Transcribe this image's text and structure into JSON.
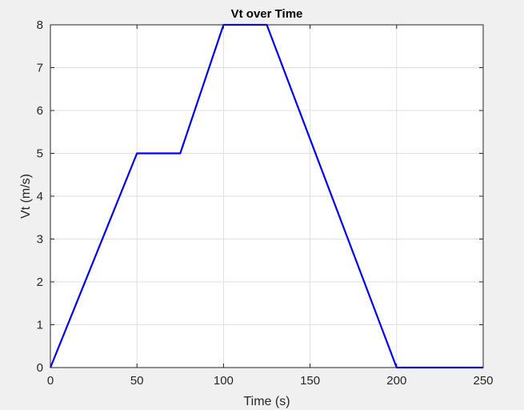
{
  "chart_data": {
    "type": "line",
    "title": "Vt over Time",
    "xlabel": "Time (s)",
    "ylabel": "Vt (m/s)",
    "xlim": [
      0,
      250
    ],
    "ylim": [
      0,
      8
    ],
    "xticks": [
      0,
      50,
      100,
      150,
      200,
      250
    ],
    "yticks": [
      0,
      1,
      2,
      3,
      4,
      5,
      6,
      7,
      8
    ],
    "grid": true,
    "series": [
      {
        "color": "#0000ff",
        "x": [
          0,
          50,
          75,
          100,
          125,
          200,
          250
        ],
        "y": [
          0,
          5,
          5,
          8,
          8,
          0,
          0
        ]
      }
    ]
  },
  "colors": {
    "figure_background": "#f0f0f0",
    "axes_background": "#ffffff",
    "grid": "#dfdfdf",
    "axis": "#262626"
  }
}
